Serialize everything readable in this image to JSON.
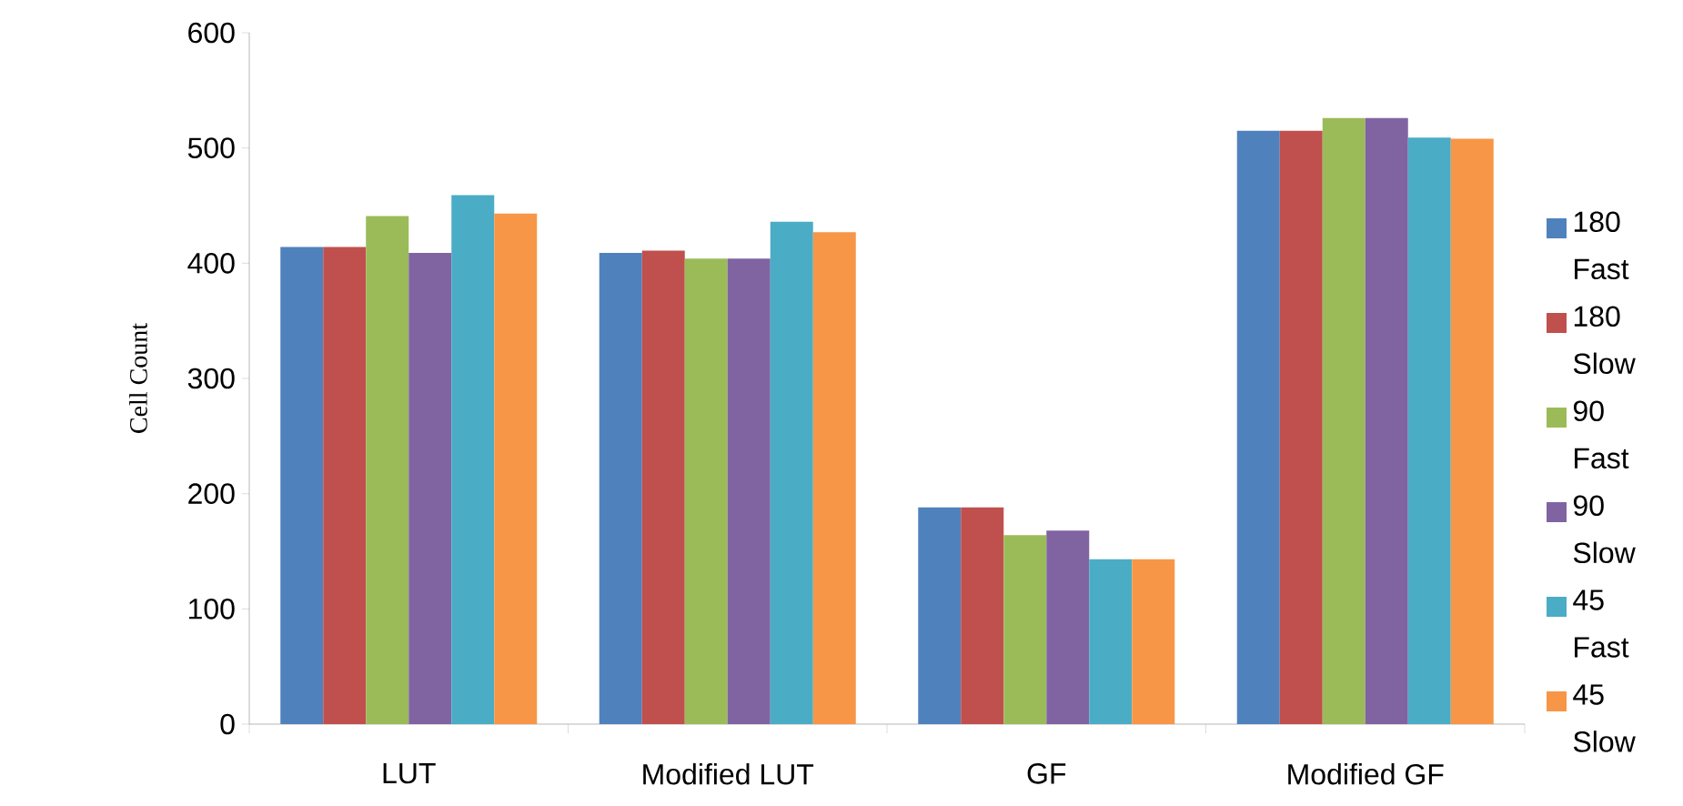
{
  "chart_data": {
    "type": "bar",
    "ylabel": "Cell Count",
    "categories": [
      "LUT",
      "Modified  LUT",
      "GF",
      "Modified GF"
    ],
    "series": [
      {
        "name": "180 Fast",
        "color": "#4f81bd",
        "values": [
          414,
          409,
          188,
          515
        ]
      },
      {
        "name": "180 Slow",
        "color": "#c0504d",
        "values": [
          414,
          411,
          188,
          515
        ]
      },
      {
        "name": "90 Fast",
        "color": "#9bbb59",
        "values": [
          441,
          404,
          164,
          526
        ]
      },
      {
        "name": "90 Slow",
        "color": "#8064a2",
        "values": [
          409,
          404,
          168,
          526
        ]
      },
      {
        "name": "45 Fast",
        "color": "#4bacc6",
        "values": [
          459,
          436,
          143,
          509
        ]
      },
      {
        "name": "45 Slow",
        "color": "#f79646",
        "values": [
          443,
          427,
          143,
          508
        ]
      }
    ],
    "ylim": [
      0,
      600
    ],
    "yticks": [
      0,
      100,
      200,
      300,
      400,
      500,
      600
    ],
    "legend": "right",
    "grid": false
  }
}
